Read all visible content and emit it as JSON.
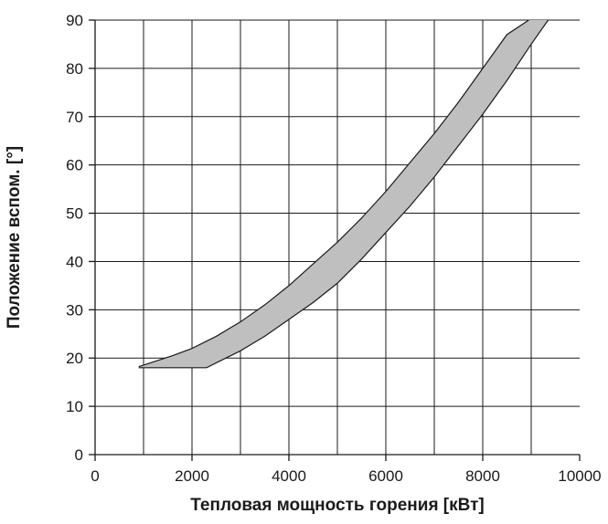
{
  "chart_data": {
    "type": "area",
    "xlabel": "Тепловая мощность горения [кВт]",
    "ylabel": "Положение вспом. [°]",
    "xlim": [
      0,
      10000
    ],
    "ylim": [
      0,
      90
    ],
    "x_ticks": [
      "0",
      "2000",
      "4000",
      "6000",
      "8000",
      "10000"
    ],
    "y_ticks": [
      "0",
      "10",
      "20",
      "30",
      "40",
      "50",
      "60",
      "70",
      "80",
      "90"
    ],
    "grid": true,
    "band_color": "#bfbfbf",
    "series": [
      {
        "x": [
          900,
          1600,
          2000,
          2500,
          3000,
          3500,
          4000,
          4500,
          5000,
          5500,
          6000,
          6500,
          7000,
          7500,
          8000,
          8500,
          8950
        ],
        "values": [
          18.2,
          20.5,
          22.0,
          24.5,
          27.5,
          31.0,
          35.0,
          39.5,
          44.0,
          49.0,
          54.5,
          60.5,
          66.5,
          73.0,
          80.0,
          87.0,
          90.0
        ]
      },
      {
        "x": [
          900,
          2300,
          2700,
          3000,
          3500,
          4000,
          4500,
          5000,
          5500,
          6000,
          6500,
          7000,
          7500,
          8000,
          8500,
          9000,
          9350
        ],
        "values": [
          18.0,
          18.0,
          20.0,
          21.5,
          24.5,
          28.0,
          31.5,
          35.5,
          40.5,
          46.0,
          51.5,
          57.5,
          64.0,
          70.5,
          77.5,
          85.0,
          90.0
        ]
      }
    ]
  }
}
